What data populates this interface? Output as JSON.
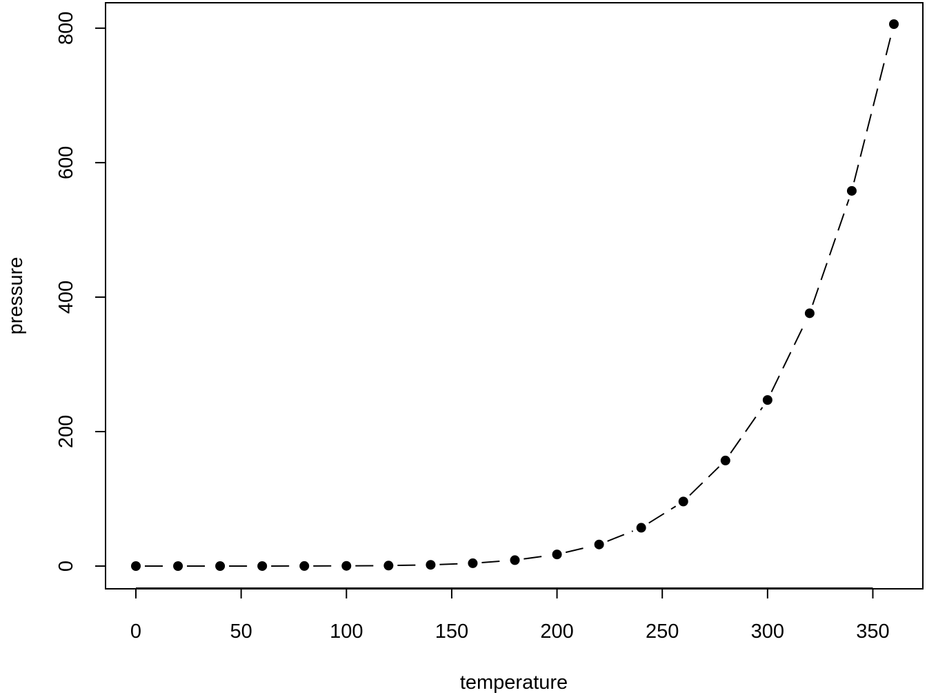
{
  "chart_data": {
    "type": "line",
    "title": "",
    "xlabel": "temperature",
    "ylabel": "pressure",
    "xlim": [
      0,
      360
    ],
    "ylim": [
      0,
      806
    ],
    "x_ticks": [
      0,
      50,
      100,
      150,
      200,
      250,
      300,
      350
    ],
    "y_ticks": [
      0,
      200,
      400,
      600,
      800
    ],
    "grid": false,
    "legend": "none",
    "line_style": "dashed",
    "marker": "filled-circle",
    "colors": {
      "line": "#000000",
      "points": "#000000",
      "axes": "#000000",
      "background": "#ffffff"
    },
    "series": [
      {
        "x": [
          0,
          20,
          40,
          60,
          80,
          100,
          120,
          140,
          160,
          180,
          200,
          220,
          240,
          260,
          280,
          300,
          320,
          340,
          360
        ],
        "y": [
          0.0002,
          0.0012,
          0.006,
          0.03,
          0.09,
          0.27,
          0.75,
          1.85,
          4.2,
          8.8,
          17.3,
          32.1,
          57,
          96,
          157,
          247,
          376,
          558,
          806
        ]
      }
    ]
  }
}
